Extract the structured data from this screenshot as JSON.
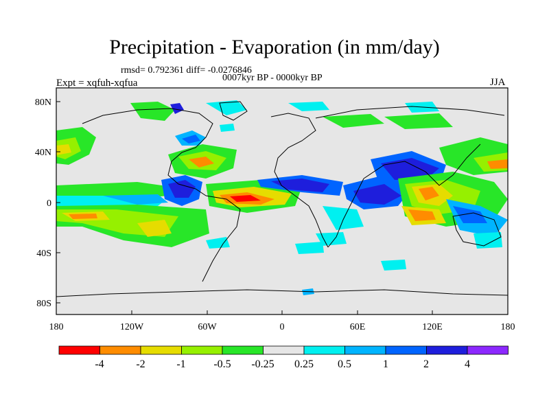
{
  "title": "Precipitation - Evaporation (in mm/day)",
  "stats": "rmsd= 0.792361 diff= -0.0276846",
  "period": "0007kyr BP - 0000kyr BP",
  "experiment": "Expt = xqfuh-xqfua",
  "season": "JJA",
  "axes": {
    "lat_ticks": [
      "80N",
      "40N",
      "0",
      "40S",
      "80S"
    ],
    "lon_ticks": [
      "180",
      "120W",
      "60W",
      "0",
      "60E",
      "120E",
      "180"
    ]
  },
  "colorbar": {
    "colors": [
      "#ff0000",
      "#ff8c00",
      "#e6dc00",
      "#96f000",
      "#28e628",
      "#e6e6e6",
      "#00f0f0",
      "#00b4ff",
      "#0064ff",
      "#1e1edc",
      "#8c28ff"
    ],
    "labels": [
      "-4",
      "-2",
      "-1",
      "-0.5",
      "-0.25",
      "0.25",
      "0.5",
      "1",
      "2",
      "4"
    ]
  },
  "colors": {
    "background": "#e6e6e6",
    "coastline": "#000000"
  }
}
